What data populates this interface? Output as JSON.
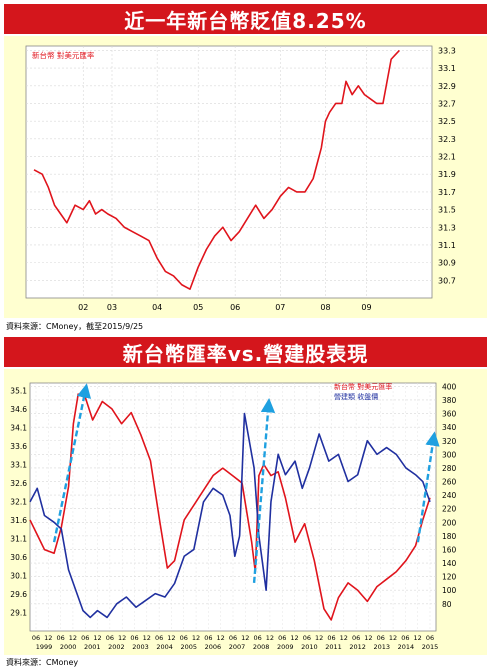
{
  "charts_header": {
    "title1": "近一年新台幣貶值8.25%",
    "source1": "資料來源：CMoney，截至2015/9/25",
    "title2": "新台幣匯率vs.營建股表現",
    "source2": "資料來源：CMoney"
  },
  "colors": {
    "banner": "#d4161c",
    "panel": "#ffffd0",
    "red": "#e0141c",
    "blue": "#2030a0",
    "arrow": "#1fa0e0"
  },
  "chart_data": [
    {
      "type": "line",
      "legend": [
        "新台幣 對美元匯率"
      ],
      "x_ticks": [
        "02",
        "03",
        "04",
        "05",
        "06",
        "07",
        "08",
        "09"
      ],
      "y_ticks": [
        "33.3",
        "33.1",
        "32.9",
        "32.7",
        "32.5",
        "32.3",
        "32.1",
        "31.9",
        "31.7",
        "31.5",
        "31.3",
        "31.1",
        "30.9",
        "30.7"
      ],
      "ylim": [
        30.5,
        33.35
      ],
      "grid": true,
      "series": [
        {
          "name": "新台幣 對美元匯率",
          "x": [
            0,
            0.2,
            0.35,
            0.5,
            0.65,
            0.8,
            0.9,
            1.0,
            1.2,
            1.35,
            1.5,
            1.65,
            1.8,
            2.0,
            2.2,
            2.4,
            2.6,
            2.8,
            3.0,
            3.2,
            3.4,
            3.6,
            3.8,
            4.0,
            4.2,
            4.4,
            4.6,
            4.8,
            5.0,
            5.2,
            5.4,
            5.6,
            5.8,
            6.0,
            6.2,
            6.4,
            6.6,
            6.8,
            7.0,
            7.1,
            7.2,
            7.35,
            7.5,
            7.6,
            7.75,
            7.9,
            8.05,
            8.2,
            8.35,
            8.5,
            8.6,
            8.7,
            8.8,
            8.9
          ],
          "y": [
            31.95,
            31.9,
            31.75,
            31.55,
            31.45,
            31.35,
            31.45,
            31.55,
            31.5,
            31.6,
            31.45,
            31.5,
            31.45,
            31.4,
            31.3,
            31.25,
            31.2,
            31.15,
            30.95,
            30.8,
            30.75,
            30.65,
            30.6,
            30.85,
            31.05,
            31.2,
            31.3,
            31.15,
            31.25,
            31.4,
            31.55,
            31.4,
            31.5,
            31.65,
            31.75,
            31.7,
            31.7,
            31.85,
            32.2,
            32.5,
            32.6,
            32.7,
            32.7,
            32.95,
            32.8,
            32.9,
            32.8,
            32.75,
            32.7,
            32.7,
            32.95,
            33.2,
            33.25,
            33.3
          ]
        }
      ]
    },
    {
      "type": "line",
      "legend": [
        "新台幣 對美元匯率",
        "營建類 收盤價"
      ],
      "x_ticks_top": [
        "06",
        "12",
        "06",
        "12",
        "06",
        "12",
        "06",
        "12",
        "06",
        "12",
        "06",
        "12",
        "06",
        "12",
        "06",
        "12",
        "06",
        "12",
        "06",
        "12",
        "06",
        "12",
        "06",
        "12",
        "06",
        "12",
        "06",
        "12",
        "06",
        "12",
        "06",
        "12",
        "06"
      ],
      "x_ticks_years": [
        "1999",
        "2000",
        "2001",
        "2002",
        "2003",
        "2004",
        "2005",
        "2006",
        "2007",
        "2008",
        "2009",
        "2010",
        "2011",
        "2012",
        "2013",
        "2014",
        "2015"
      ],
      "y_left_ticks": [
        "35.1",
        "34.6",
        "34.1",
        "33.6",
        "33.1",
        "32.6",
        "32.1",
        "31.6",
        "31.1",
        "30.6",
        "30.1",
        "29.6",
        "29.1"
      ],
      "y_right_ticks": [
        "400",
        "380",
        "360",
        "340",
        "320",
        "300",
        "280",
        "260",
        "240",
        "220",
        "200",
        "180",
        "160",
        "140",
        "120",
        "100",
        "80"
      ],
      "ylim_left": [
        28.6,
        35.3
      ],
      "ylim_right": [
        40,
        405
      ],
      "grid": true,
      "series": [
        {
          "name": "新台幣 對美元匯率",
          "axis": "left",
          "x": [
            1999.0,
            1999.3,
            1999.6,
            2000.0,
            2000.3,
            2000.6,
            2000.8,
            2001.0,
            2001.3,
            2001.6,
            2002.0,
            2002.4,
            2002.8,
            2003.2,
            2003.6,
            2004.0,
            2004.4,
            2004.7,
            2005.0,
            2005.4,
            2005.8,
            2006.2,
            2006.6,
            2007.0,
            2007.4,
            2007.8,
            2008.2,
            2008.35,
            2008.5,
            2008.7,
            2009.0,
            2009.3,
            2009.6,
            2010.0,
            2010.4,
            2010.8,
            2011.2,
            2011.5,
            2011.8,
            2012.2,
            2012.6,
            2013.0,
            2013.4,
            2013.8,
            2014.2,
            2014.6,
            2015.0,
            2015.3,
            2015.6
          ],
          "y": [
            31.6,
            31.2,
            30.8,
            30.7,
            31.4,
            32.5,
            34.2,
            35.0,
            34.9,
            34.3,
            34.8,
            34.6,
            34.2,
            34.5,
            33.9,
            33.2,
            31.5,
            30.3,
            30.5,
            31.6,
            32.0,
            32.4,
            32.8,
            33.0,
            32.8,
            32.6,
            31.0,
            30.2,
            32.8,
            33.1,
            32.8,
            32.9,
            32.2,
            31.0,
            31.5,
            30.5,
            29.2,
            28.9,
            29.5,
            29.9,
            29.7,
            29.4,
            29.8,
            30.0,
            30.2,
            30.5,
            30.9,
            31.6,
            32.2
          ]
        },
        {
          "name": "營建類 收盤價",
          "axis": "right",
          "x": [
            1999.0,
            1999.3,
            1999.6,
            2000.0,
            2000.3,
            2000.6,
            2000.9,
            2001.2,
            2001.5,
            2001.8,
            2002.2,
            2002.6,
            2003.0,
            2003.4,
            2003.8,
            2004.2,
            2004.6,
            2005.0,
            2005.4,
            2005.8,
            2006.2,
            2006.6,
            2007.0,
            2007.3,
            2007.5,
            2007.7,
            2007.9,
            2008.1,
            2008.3,
            2008.5,
            2008.8,
            2009.0,
            2009.3,
            2009.6,
            2010.0,
            2010.3,
            2010.6,
            2011.0,
            2011.4,
            2011.8,
            2012.2,
            2012.6,
            2013.0,
            2013.4,
            2013.8,
            2014.2,
            2014.6,
            2015.0,
            2015.3,
            2015.6
          ],
          "y": [
            230,
            250,
            210,
            200,
            190,
            130,
            100,
            70,
            60,
            70,
            60,
            80,
            90,
            75,
            85,
            95,
            90,
            110,
            150,
            160,
            230,
            250,
            240,
            210,
            150,
            180,
            360,
            320,
            280,
            180,
            100,
            230,
            300,
            270,
            290,
            250,
            280,
            330,
            290,
            300,
            260,
            270,
            320,
            300,
            310,
            300,
            280,
            270,
            260,
            230
          ]
        }
      ]
    }
  ]
}
